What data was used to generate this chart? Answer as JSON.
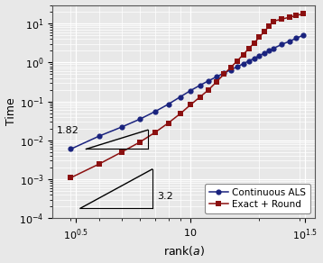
{
  "xlabel": "rank($a$)",
  "ylabel": "Time",
  "background_color": "#e8e8e8",
  "grid_color": "#ffffff",
  "als_color": "#1a237e",
  "exact_color": "#8b1010",
  "slope_color": "#000000",
  "slope1_label": "1.82",
  "slope2_label": "3.2",
  "legend_labels": [
    "Continuous ALS",
    "Exact + Round"
  ],
  "als_x": [
    3,
    4,
    5,
    6,
    7,
    8,
    9,
    10,
    11,
    12,
    13,
    14,
    15,
    16,
    17,
    18,
    19,
    20,
    21,
    22,
    23,
    25,
    27,
    29,
    31
  ],
  "als_y": [
    0.006,
    0.013,
    0.022,
    0.035,
    0.055,
    0.085,
    0.13,
    0.19,
    0.26,
    0.34,
    0.43,
    0.54,
    0.65,
    0.78,
    0.93,
    1.1,
    1.28,
    1.5,
    1.75,
    2.0,
    2.3,
    2.9,
    3.5,
    4.2,
    5.0
  ],
  "exact_x": [
    3,
    4,
    5,
    6,
    7,
    8,
    9,
    10,
    11,
    12,
    13,
    14,
    15,
    16,
    17,
    18,
    19,
    20,
    21,
    22,
    23,
    25,
    27,
    29,
    31
  ],
  "exact_y": [
    0.0011,
    0.0025,
    0.005,
    0.009,
    0.016,
    0.028,
    0.048,
    0.082,
    0.13,
    0.2,
    0.32,
    0.5,
    0.75,
    1.1,
    1.6,
    2.3,
    3.2,
    4.5,
    6.2,
    8.5,
    11.5,
    13.0,
    14.5,
    16.0,
    18.0
  ],
  "xlim": [
    2.5,
    35
  ],
  "ylim": [
    0.0001,
    30
  ],
  "xticks": [
    3.162,
    10.0,
    31.62
  ],
  "xtick_labels": [
    "$10^{0.5}$",
    "$10$",
    "$10^{1.5}$"
  ],
  "yticks": [
    0.0001,
    0.001,
    0.01,
    0.1,
    1.0,
    10.0
  ],
  "slope1_x1": 3.5,
  "slope1_x2": 6.5,
  "slope1_y1_base": 0.006,
  "slope1_exp": 1.82,
  "slope2_x1": 3.3,
  "slope2_x2": 6.8,
  "slope2_y1_base": 0.00018,
  "slope2_exp": 3.2
}
